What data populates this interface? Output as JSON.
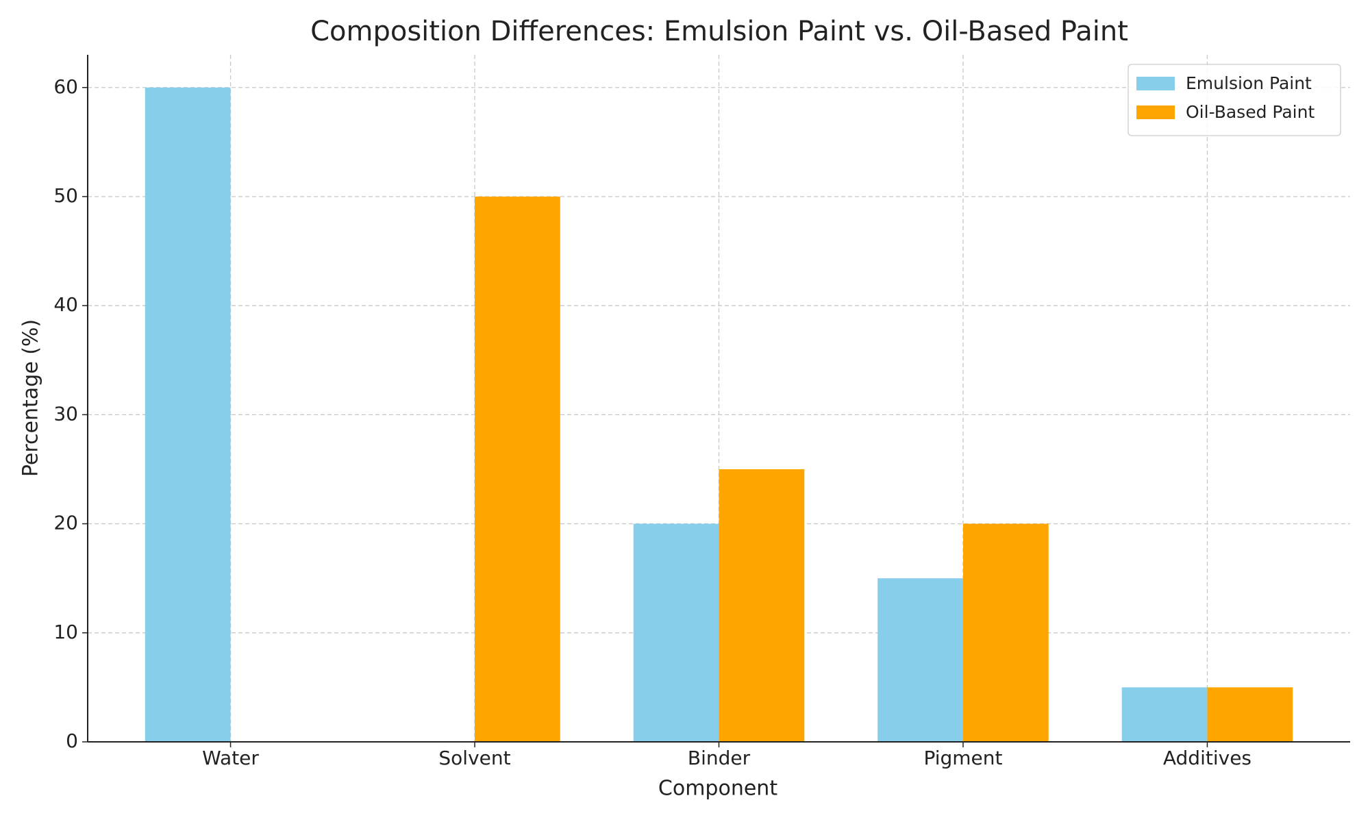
{
  "chart_data": {
    "type": "grouped_bar",
    "title": "Composition Differences: Emulsion Paint vs. Oil-Based Paint",
    "x_label": "Component",
    "y_label": "Percentage (%)",
    "categories": [
      "Water",
      "Solvent",
      "Binder",
      "Pigment",
      "Additives"
    ],
    "series": [
      {
        "name": "Emulsion Paint",
        "color": "#87ceeb",
        "values": [
          60,
          0,
          20,
          15,
          5
        ]
      },
      {
        "name": "Oil-Based Paint",
        "color": "#ffa500",
        "values": [
          0,
          50,
          25,
          20,
          5
        ]
      }
    ],
    "ylim": [
      0,
      63
    ],
    "yticks": [
      0,
      10,
      20,
      30,
      40,
      50,
      60
    ],
    "grid": true,
    "legend": "upper right"
  }
}
